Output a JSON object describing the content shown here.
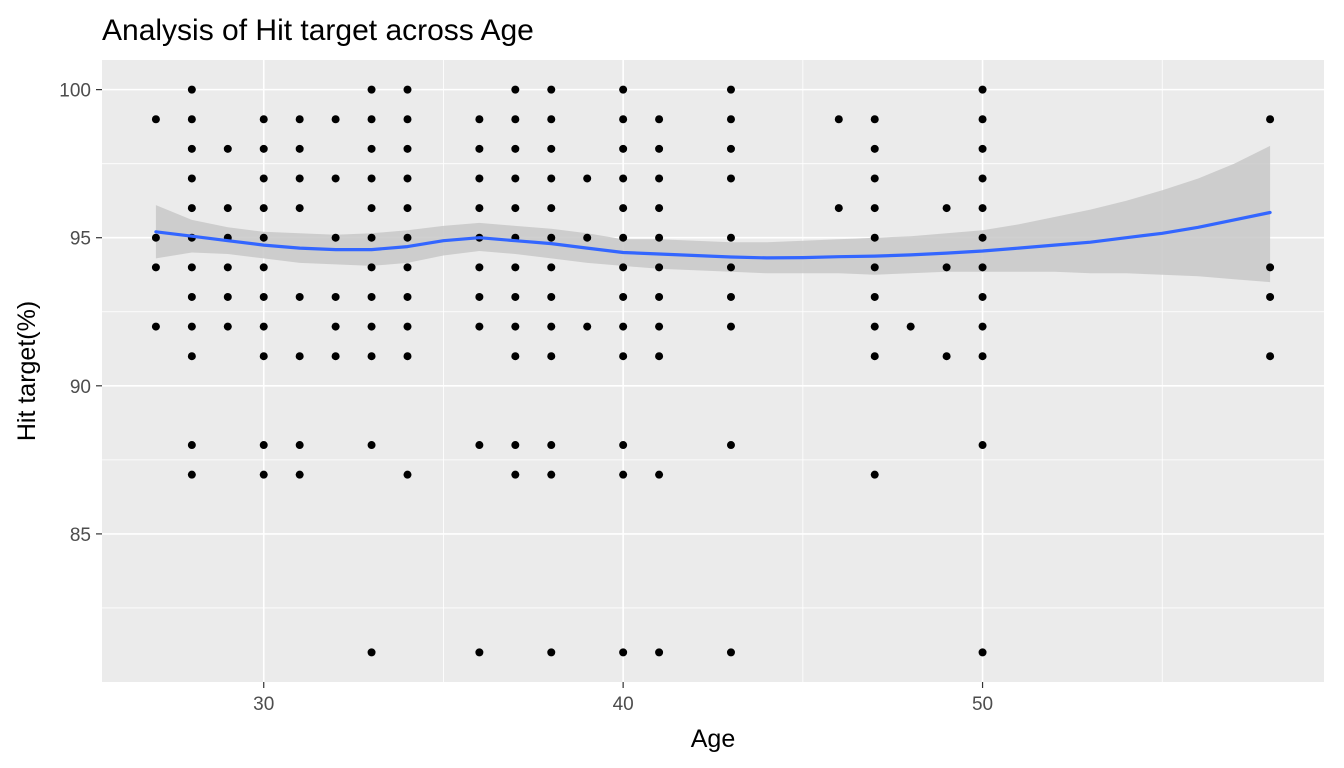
{
  "chart_data": {
    "type": "scatter",
    "title": "Analysis of Hit target across Age",
    "xlabel": "Age",
    "ylabel": "Hit target(%)",
    "xlim": [
      25.5,
      59.5
    ],
    "ylim": [
      80.0,
      101.0
    ],
    "x_ticks": [
      30,
      40,
      50
    ],
    "y_ticks": [
      85,
      90,
      95,
      100
    ],
    "grid": true,
    "legend": "none",
    "colors": {
      "panel": "#ebebeb",
      "grid": "#ffffff",
      "point": "#000000",
      "smooth_line": "#3366ff",
      "ribbon": "#c8c8c8"
    },
    "points": [
      [
        27,
        99
      ],
      [
        27,
        95
      ],
      [
        27,
        94
      ],
      [
        27,
        92
      ],
      [
        28,
        100
      ],
      [
        28,
        99
      ],
      [
        28,
        98
      ],
      [
        28,
        97
      ],
      [
        28,
        96
      ],
      [
        28,
        95
      ],
      [
        28,
        94
      ],
      [
        28,
        93
      ],
      [
        28,
        92
      ],
      [
        28,
        91
      ],
      [
        28,
        88
      ],
      [
        28,
        87
      ],
      [
        29,
        98
      ],
      [
        29,
        96
      ],
      [
        29,
        95
      ],
      [
        29,
        94
      ],
      [
        29,
        93
      ],
      [
        29,
        92
      ],
      [
        30,
        99
      ],
      [
        30,
        98
      ],
      [
        30,
        97
      ],
      [
        30,
        96
      ],
      [
        30,
        95
      ],
      [
        30,
        94
      ],
      [
        30,
        93
      ],
      [
        30,
        92
      ],
      [
        30,
        91
      ],
      [
        30,
        88
      ],
      [
        30,
        87
      ],
      [
        31,
        99
      ],
      [
        31,
        98
      ],
      [
        31,
        97
      ],
      [
        31,
        96
      ],
      [
        31,
        93
      ],
      [
        31,
        91
      ],
      [
        31,
        88
      ],
      [
        31,
        87
      ],
      [
        32,
        99
      ],
      [
        32,
        97
      ],
      [
        32,
        95
      ],
      [
        32,
        93
      ],
      [
        32,
        92
      ],
      [
        32,
        91
      ],
      [
        33,
        100
      ],
      [
        33,
        99
      ],
      [
        33,
        98
      ],
      [
        33,
        97
      ],
      [
        33,
        96
      ],
      [
        33,
        95
      ],
      [
        33,
        94
      ],
      [
        33,
        93
      ],
      [
        33,
        92
      ],
      [
        33,
        91
      ],
      [
        33,
        88
      ],
      [
        33,
        81
      ],
      [
        34,
        100
      ],
      [
        34,
        99
      ],
      [
        34,
        98
      ],
      [
        34,
        97
      ],
      [
        34,
        96
      ],
      [
        34,
        95
      ],
      [
        34,
        94
      ],
      [
        34,
        93
      ],
      [
        34,
        92
      ],
      [
        34,
        91
      ],
      [
        34,
        87
      ],
      [
        36,
        99
      ],
      [
        36,
        98
      ],
      [
        36,
        97
      ],
      [
        36,
        96
      ],
      [
        36,
        95
      ],
      [
        36,
        94
      ],
      [
        36,
        93
      ],
      [
        36,
        92
      ],
      [
        36,
        88
      ],
      [
        36,
        81
      ],
      [
        37,
        100
      ],
      [
        37,
        99
      ],
      [
        37,
        98
      ],
      [
        37,
        97
      ],
      [
        37,
        96
      ],
      [
        37,
        95
      ],
      [
        37,
        94
      ],
      [
        37,
        93
      ],
      [
        37,
        92
      ],
      [
        37,
        91
      ],
      [
        37,
        88
      ],
      [
        37,
        87
      ],
      [
        38,
        100
      ],
      [
        38,
        99
      ],
      [
        38,
        98
      ],
      [
        38,
        97
      ],
      [
        38,
        96
      ],
      [
        38,
        95
      ],
      [
        38,
        94
      ],
      [
        38,
        93
      ],
      [
        38,
        92
      ],
      [
        38,
        91
      ],
      [
        38,
        88
      ],
      [
        38,
        87
      ],
      [
        38,
        81
      ],
      [
        39,
        97
      ],
      [
        39,
        95
      ],
      [
        39,
        92
      ],
      [
        40,
        100
      ],
      [
        40,
        99
      ],
      [
        40,
        98
      ],
      [
        40,
        97
      ],
      [
        40,
        96
      ],
      [
        40,
        95
      ],
      [
        40,
        94
      ],
      [
        40,
        93
      ],
      [
        40,
        92
      ],
      [
        40,
        91
      ],
      [
        40,
        88
      ],
      [
        40,
        87
      ],
      [
        40,
        81
      ],
      [
        41,
        99
      ],
      [
        41,
        98
      ],
      [
        41,
        97
      ],
      [
        41,
        96
      ],
      [
        41,
        95
      ],
      [
        41,
        94
      ],
      [
        41,
        93
      ],
      [
        41,
        92
      ],
      [
        41,
        91
      ],
      [
        41,
        87
      ],
      [
        41,
        81
      ],
      [
        43,
        100
      ],
      [
        43,
        99
      ],
      [
        43,
        98
      ],
      [
        43,
        97
      ],
      [
        43,
        95
      ],
      [
        43,
        94
      ],
      [
        43,
        93
      ],
      [
        43,
        92
      ],
      [
        43,
        88
      ],
      [
        43,
        81
      ],
      [
        46,
        99
      ],
      [
        46,
        96
      ],
      [
        47,
        99
      ],
      [
        47,
        98
      ],
      [
        47,
        97
      ],
      [
        47,
        96
      ],
      [
        47,
        95
      ],
      [
        47,
        94
      ],
      [
        47,
        93
      ],
      [
        47,
        92
      ],
      [
        47,
        91
      ],
      [
        47,
        87
      ],
      [
        48,
        92
      ],
      [
        49,
        96
      ],
      [
        49,
        94
      ],
      [
        49,
        91
      ],
      [
        50,
        100
      ],
      [
        50,
        99
      ],
      [
        50,
        98
      ],
      [
        50,
        97
      ],
      [
        50,
        96
      ],
      [
        50,
        95
      ],
      [
        50,
        94
      ],
      [
        50,
        93
      ],
      [
        50,
        92
      ],
      [
        50,
        91
      ],
      [
        50,
        88
      ],
      [
        50,
        81
      ],
      [
        58,
        99
      ],
      [
        58,
        94
      ],
      [
        58,
        93
      ],
      [
        58,
        91
      ]
    ],
    "smooth": {
      "x": [
        27,
        28,
        29,
        30,
        31,
        32,
        33,
        34,
        35,
        36,
        37,
        38,
        39,
        40,
        41,
        42,
        43,
        44,
        45,
        46,
        47,
        48,
        49,
        50,
        51,
        52,
        53,
        54,
        55,
        56,
        57,
        58
      ],
      "y": [
        95.2,
        95.05,
        94.9,
        94.75,
        94.65,
        94.6,
        94.6,
        94.7,
        94.9,
        95.0,
        94.9,
        94.8,
        94.65,
        94.5,
        94.45,
        94.4,
        94.35,
        94.32,
        94.33,
        94.36,
        94.38,
        94.42,
        94.48,
        94.55,
        94.65,
        94.75,
        94.85,
        95.0,
        95.15,
        95.35,
        95.6,
        95.85
      ],
      "lower": [
        94.3,
        94.5,
        94.45,
        94.3,
        94.15,
        94.1,
        94.05,
        94.15,
        94.4,
        94.55,
        94.45,
        94.3,
        94.15,
        94.05,
        93.95,
        93.9,
        93.85,
        93.8,
        93.8,
        93.8,
        93.75,
        93.8,
        93.85,
        93.85,
        93.85,
        93.85,
        93.8,
        93.8,
        93.75,
        93.7,
        93.6,
        93.5
      ],
      "upper": [
        96.1,
        95.6,
        95.35,
        95.2,
        95.15,
        95.1,
        95.15,
        95.25,
        95.4,
        95.5,
        95.4,
        95.3,
        95.15,
        94.95,
        94.95,
        94.9,
        94.85,
        94.85,
        94.9,
        94.95,
        95.0,
        95.05,
        95.15,
        95.25,
        95.45,
        95.7,
        95.95,
        96.25,
        96.6,
        97.0,
        97.5,
        98.1
      ]
    }
  }
}
